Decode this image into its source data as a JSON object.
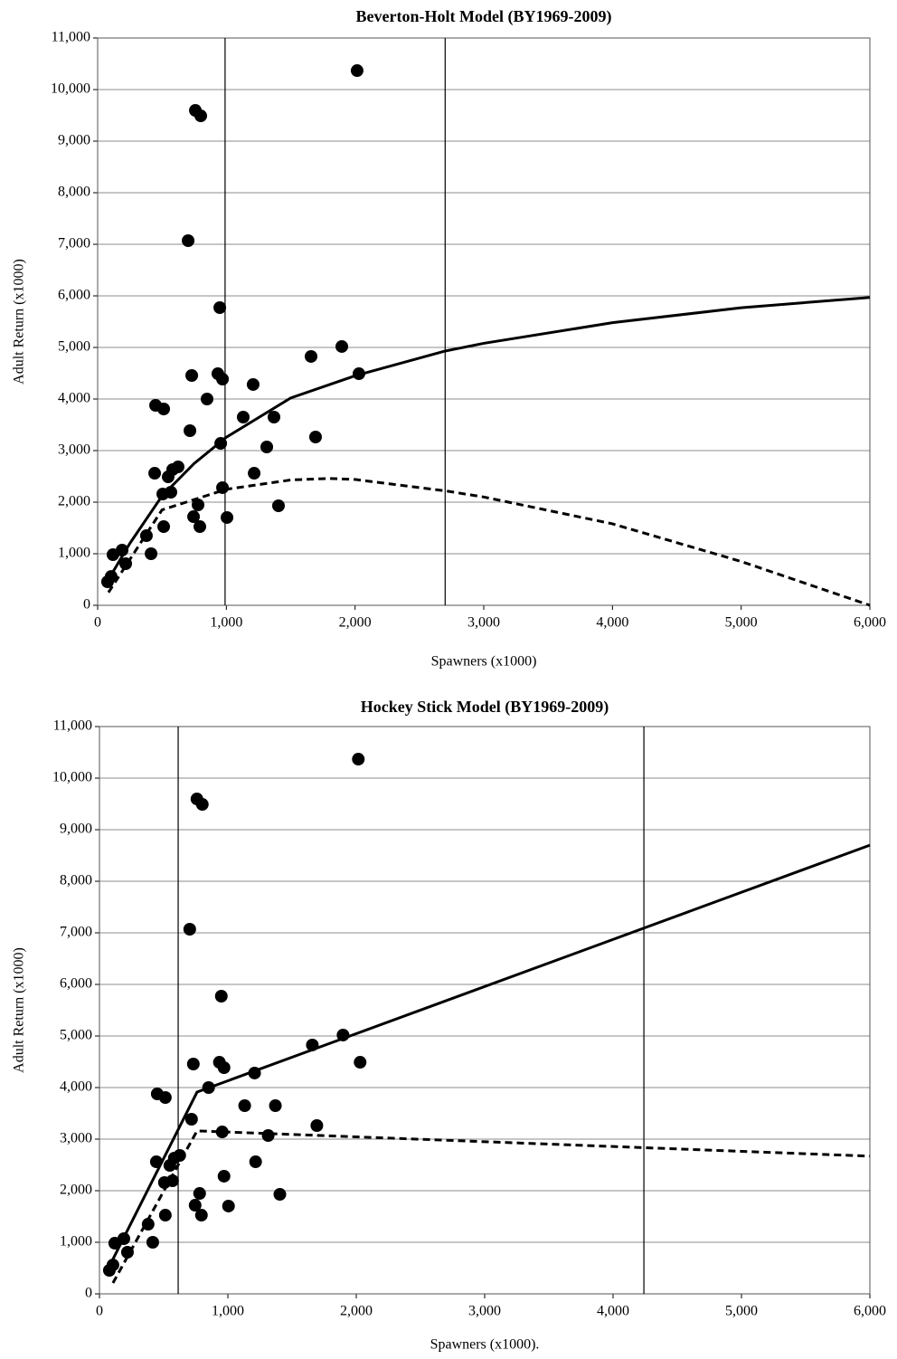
{
  "chart_data": [
    {
      "type": "scatter",
      "title": "Beverton-Holt Model (BY1969-2009)",
      "x_label": "Spawners (x1000)",
      "y_label": "Adult Return (x1000)",
      "xlim": [
        0,
        6000
      ],
      "ylim": [
        0,
        11000
      ],
      "xticks": [
        0,
        {
          "value": 1000,
          "label": "1,000"
        },
        {
          "value": 2000,
          "label": "2,000"
        },
        {
          "value": 3000,
          "label": "3,000"
        },
        {
          "value": 4000,
          "label": "4,000"
        },
        {
          "value": 5000,
          "label": "5,000"
        },
        {
          "value": 6000,
          "label": "6,000"
        }
      ],
      "yticks": [
        0,
        {
          "value": 1000,
          "label": "1,000"
        },
        {
          "value": 2000,
          "label": "2,000"
        },
        {
          "value": 3000,
          "label": "3,000"
        },
        {
          "value": 4000,
          "label": "4,000"
        },
        {
          "value": 5000,
          "label": "5,000"
        },
        {
          "value": 6000,
          "label": "6,000"
        },
        {
          "value": 7000,
          "label": "7,000"
        },
        {
          "value": 8000,
          "label": "8,000"
        },
        {
          "value": 9000,
          "label": "9,000"
        },
        {
          "value": 10000,
          "label": "10,000"
        },
        {
          "value": 11000,
          "label": "11,000"
        }
      ],
      "grid": true,
      "series": [
        {
          "kind": "scatter",
          "color": "#000000",
          "x": [
            77,
            105,
            119,
            190,
            218,
            379,
            415,
            443,
            450,
            513,
            506,
            513,
            548,
            569,
            583,
            625,
            703,
            717,
            731,
            745,
            759,
            801,
            780,
            794,
            850,
            934,
            949,
            956,
            970,
            970,
            1005,
            1131,
            1208,
            1216,
            1314,
            1370,
            1405,
            1658,
            1693,
            1897,
            2016,
            2030
          ],
          "values": [
            456,
            560,
            982,
            1070,
            807,
            1350,
            1000,
            2561,
            3877,
            3807,
            2158,
            1526,
            2491,
            2193,
            2632,
            2684,
            7070,
            3386,
            4456,
            1719,
            9596,
            9491,
            1947,
            1526,
            4000,
            4491,
            5772,
            3140,
            4386,
            2281,
            1702,
            3649,
            4281,
            2561,
            3070,
            3649,
            1930,
            4825,
            3263,
            5018,
            10368,
            4491
          ]
        },
        {
          "kind": "line",
          "dash": false,
          "color": "#000000",
          "x": [
            60,
            250,
            500,
            750,
            1000,
            1500,
            2000,
            2700,
            3000,
            4000,
            5000,
            6000
          ],
          "values": [
            400,
            1200,
            2120,
            2750,
            3260,
            4020,
            4450,
            4930,
            5080,
            5480,
            5770,
            5970
          ]
        },
        {
          "kind": "line",
          "dash": true,
          "color": "#000000",
          "x": [
            84,
            500,
            1000,
            1500,
            1800,
            2000,
            2700,
            3000,
            4000,
            5000,
            6000
          ],
          "values": [
            250,
            1850,
            2250,
            2430,
            2460,
            2440,
            2220,
            2100,
            1580,
            850,
            0
          ]
        },
        {
          "kind": "vline",
          "color": "#000000",
          "x": 990
        },
        {
          "kind": "vline",
          "color": "#000000",
          "x": 2700
        }
      ]
    },
    {
      "type": "scatter",
      "title": "Hockey Stick Model (BY1969-2009)",
      "x_label": "Spawners (x1000).",
      "y_label": "Adult Return (x1000)",
      "xlim": [
        0,
        6000
      ],
      "ylim": [
        0,
        11000
      ],
      "xticks": [
        0,
        {
          "value": 1000,
          "label": "1,000"
        },
        {
          "value": 2000,
          "label": "2,000"
        },
        {
          "value": 3000,
          "label": "3,000"
        },
        {
          "value": 4000,
          "label": "4,000"
        },
        {
          "value": 5000,
          "label": "5,000"
        },
        {
          "value": 6000,
          "label": "6,000"
        }
      ],
      "yticks": [
        0,
        {
          "value": 1000,
          "label": "1,000"
        },
        {
          "value": 2000,
          "label": "2,000"
        },
        {
          "value": 3000,
          "label": "3,000"
        },
        {
          "value": 4000,
          "label": "4,000"
        },
        {
          "value": 5000,
          "label": "5,000"
        },
        {
          "value": 6000,
          "label": "6,000"
        },
        {
          "value": 7000,
          "label": "7,000"
        },
        {
          "value": 8000,
          "label": "8,000"
        },
        {
          "value": 9000,
          "label": "9,000"
        },
        {
          "value": 10000,
          "label": "10,000"
        },
        {
          "value": 11000,
          "label": "11,000"
        }
      ],
      "grid": true,
      "series": [
        {
          "kind": "scatter",
          "color": "#000000",
          "x": [
            77,
            105,
            119,
            190,
            218,
            379,
            415,
            443,
            450,
            513,
            506,
            513,
            548,
            569,
            583,
            625,
            703,
            717,
            731,
            745,
            759,
            801,
            780,
            794,
            850,
            934,
            949,
            956,
            970,
            970,
            1005,
            1131,
            1208,
            1216,
            1314,
            1370,
            1405,
            1658,
            1693,
            1897,
            2016,
            2030
          ],
          "values": [
            456,
            560,
            982,
            1070,
            807,
            1350,
            1000,
            2561,
            3877,
            3807,
            2158,
            1526,
            2491,
            2193,
            2632,
            2684,
            7070,
            3386,
            4456,
            1719,
            9596,
            9491,
            1947,
            1526,
            4000,
            4491,
            5772,
            3140,
            4386,
            2281,
            1702,
            3649,
            4281,
            2561,
            3070,
            3649,
            1930,
            4825,
            3263,
            5018,
            10368,
            4491
          ]
        },
        {
          "kind": "line",
          "dash": false,
          "color": "#000000",
          "x": [
            60,
            760,
            6000
          ],
          "values": [
            450,
            3912,
            8700
          ]
        },
        {
          "kind": "line",
          "dash": true,
          "color": "#000000",
          "x": [
            105,
            760,
            6000
          ],
          "values": [
            210,
            3160,
            2670
          ]
        },
        {
          "kind": "vline",
          "color": "#000000",
          "x": 613
        },
        {
          "kind": "vline",
          "color": "#000000",
          "x": 4240
        }
      ]
    }
  ]
}
